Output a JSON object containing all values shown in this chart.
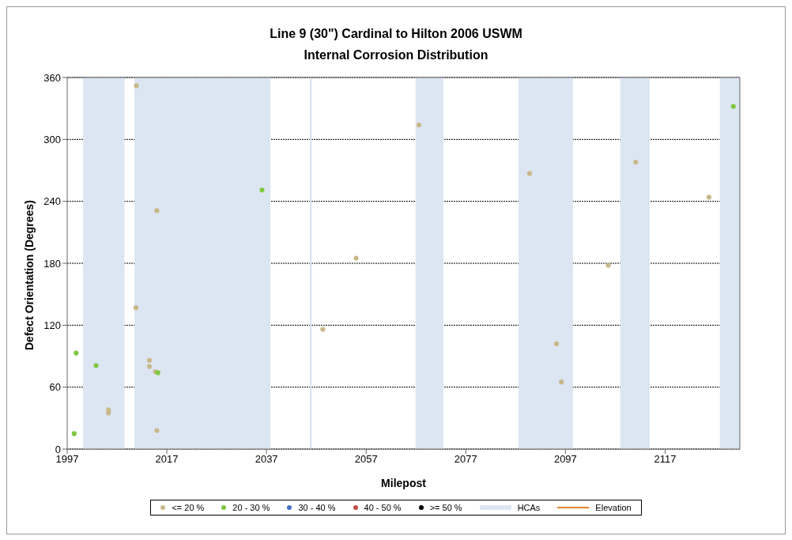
{
  "chart_data": {
    "type": "scatter",
    "title": "Line 9 (30\") Cardinal to Hilton 2006 USWM",
    "subtitle": "Internal Corrosion Distribution",
    "xlabel": "Milepost",
    "ylabel": "Defect Orientation (Degrees)",
    "xlim": [
      1997,
      2132
    ],
    "xticks": [
      1997,
      2017,
      2037,
      2057,
      2077,
      2097,
      2117
    ],
    "ylim": [
      0,
      360
    ],
    "yticks": [
      0,
      60,
      120,
      180,
      240,
      300,
      360
    ],
    "grid": "y",
    "legend": "bottom",
    "marker": "circle",
    "series": [
      {
        "name": "<= 20 %",
        "color": "#c8b88a",
        "x": [
          2005.3,
          2005.3,
          2010.9,
          2010.8,
          2013.5,
          2013.5,
          2014.7,
          2015.0,
          2015.0,
          2048.3,
          2055.0,
          2067.6,
          2089.8,
          2095.2,
          2096.2,
          2105.6,
          2111.1,
          2125.8
        ],
        "values": [
          35,
          38,
          352,
          137,
          86,
          80,
          75,
          231,
          18,
          116,
          185,
          314,
          267,
          102,
          65,
          178,
          278,
          244
        ]
      },
      {
        "name": "20 - 30 %",
        "color": "#7ec83f",
        "x": [
          1998.4,
          1998.8,
          2002.8,
          2015.2,
          2036.1,
          2130.7
        ],
        "values": [
          15,
          93,
          81,
          74,
          251,
          332
        ]
      },
      {
        "name": "30 - 40 %",
        "color": "#4472c4"
      },
      {
        "name": "40 - 50 %",
        "color": "#c0504d"
      },
      {
        "name": ">= 50 %",
        "color": "#000000"
      },
      {
        "name": "HCAs",
        "type": "area",
        "color": "#dce6f2"
      },
      {
        "name": "Elevation",
        "type": "line",
        "color": "#e8822a"
      }
    ],
    "bands": [
      {
        "axis": "x",
        "from": 2000.2,
        "to": 2008.5,
        "color": "#dce6f2"
      },
      {
        "axis": "x",
        "from": 2010.5,
        "to": 2037.8,
        "color": "#dce6f2"
      },
      {
        "axis": "x",
        "from": 2045.7,
        "to": 2046.1,
        "color": "#dce6f2"
      },
      {
        "axis": "x",
        "from": 2066.9,
        "to": 2072.5,
        "color": "#dce6f2"
      },
      {
        "axis": "x",
        "from": 2087.6,
        "to": 2098.5,
        "color": "#dce6f2"
      },
      {
        "axis": "x",
        "from": 2108.0,
        "to": 2113.9,
        "color": "#dce6f2"
      },
      {
        "axis": "x",
        "from": 2128.0,
        "to": 2132,
        "color": "#dce6f2"
      }
    ]
  }
}
